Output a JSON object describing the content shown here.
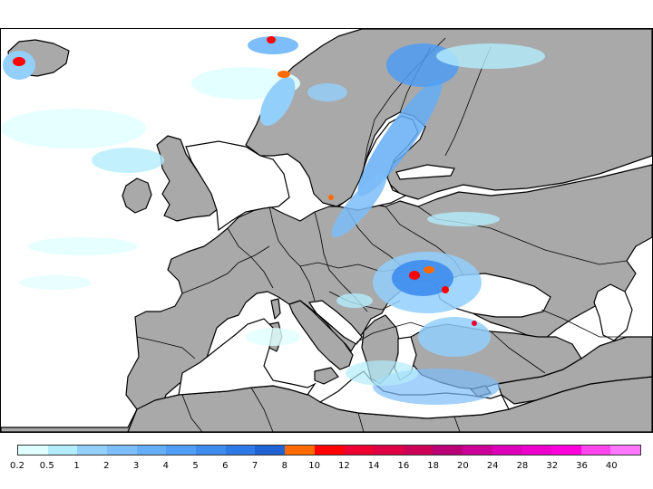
{
  "map": {
    "region": "Europe",
    "land_color": "#a9a9a9",
    "sea_color": "#ffffff"
  },
  "legend": {
    "labels": [
      "0.2",
      "0.5",
      "1",
      "2",
      "3",
      "4",
      "5",
      "6",
      "7",
      "8",
      "10",
      "12",
      "14",
      "16",
      "18",
      "20",
      "24",
      "28",
      "32",
      "36",
      "40"
    ],
    "colors": [
      "#e0ffff",
      "#b3ecfb",
      "#93cffb",
      "#7dbdf9",
      "#65aef6",
      "#4f9ef3",
      "#3d8cee",
      "#2d79e6",
      "#1e63d1",
      "#ff6a00",
      "#ff0000",
      "#ee0033",
      "#dd0044",
      "#cc0055",
      "#bb0077",
      "#cc0099",
      "#dd00bb",
      "#ee00cc",
      "#ff00dd",
      "#ff44ee",
      "#ff77ff"
    ]
  }
}
